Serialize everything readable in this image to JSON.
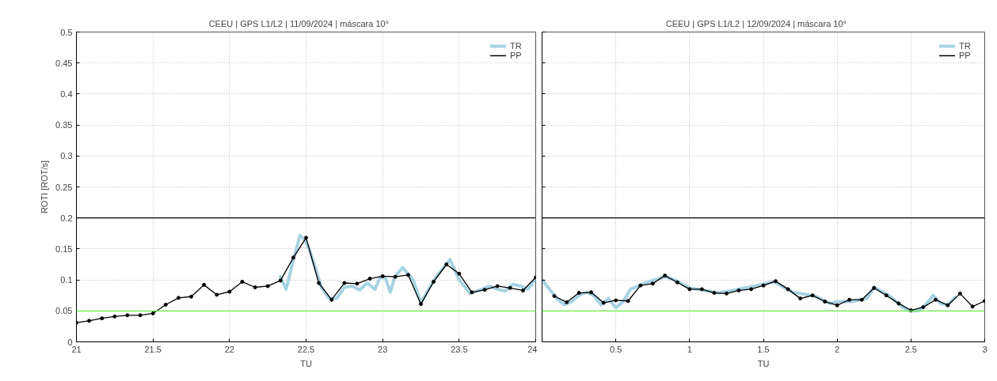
{
  "chart_data": [
    {
      "type": "line",
      "title": "CEEU  |  GPS L1/L2  |  11/09/2024  |  máscara 10°",
      "xlabel": "TU",
      "ylabel": "ROTI [ROT/s]",
      "xlim": [
        21,
        24
      ],
      "xticks": [
        21,
        21.5,
        22,
        22.5,
        23,
        23.5,
        24
      ],
      "ylim": [
        0,
        0.5
      ],
      "yticks": [
        0,
        0.05,
        0.1,
        0.15,
        0.2,
        0.25,
        0.3,
        0.35,
        0.4,
        0.45,
        0.5
      ],
      "grid": true,
      "legend": "top right",
      "ref_lines": [
        {
          "axis": "y",
          "value": 0.2,
          "color": "#000000"
        },
        {
          "axis": "y",
          "value": 0.05,
          "color": "#66ee44"
        }
      ],
      "series": [
        {
          "name": "TR",
          "color": "#a6d3e3",
          "marker": "none",
          "x": [
            22.33,
            22.37,
            22.42,
            22.46,
            22.49,
            22.52,
            22.56,
            22.6,
            22.65,
            22.7,
            22.75,
            22.8,
            22.85,
            22.9,
            22.95,
            22.98,
            23.0,
            23.02,
            23.05,
            23.08,
            23.13,
            23.2,
            23.25,
            23.3,
            23.35,
            23.44,
            23.5,
            23.57,
            23.65,
            23.7,
            23.75,
            23.8,
            23.85,
            23.9,
            23.95,
            24.0
          ],
          "values": [
            0.105,
            0.085,
            0.135,
            0.172,
            0.165,
            0.15,
            0.12,
            0.088,
            0.07,
            0.07,
            0.088,
            0.09,
            0.084,
            0.095,
            0.085,
            0.102,
            0.106,
            0.102,
            0.08,
            0.105,
            0.12,
            0.1,
            0.062,
            0.085,
            0.105,
            0.133,
            0.1,
            0.078,
            0.085,
            0.09,
            0.085,
            0.082,
            0.093,
            0.09,
            0.085,
            0.102
          ]
        },
        {
          "name": "PP",
          "color": "#000000",
          "marker": "circle",
          "x": [
            21.0,
            21.083,
            21.167,
            21.25,
            21.333,
            21.417,
            21.5,
            21.583,
            21.667,
            21.75,
            21.833,
            21.917,
            22.0,
            22.083,
            22.167,
            22.25,
            22.333,
            22.417,
            22.5,
            22.583,
            22.667,
            22.75,
            22.833,
            22.917,
            23.0,
            23.083,
            23.167,
            23.25,
            23.333,
            23.417,
            23.5,
            23.583,
            23.667,
            23.75,
            23.833,
            23.917,
            24.0
          ],
          "values": [
            0.031,
            0.034,
            0.038,
            0.041,
            0.043,
            0.043,
            0.046,
            0.06,
            0.071,
            0.073,
            0.092,
            0.076,
            0.081,
            0.097,
            0.088,
            0.09,
            0.099,
            0.136,
            0.168,
            0.095,
            0.068,
            0.095,
            0.094,
            0.102,
            0.106,
            0.105,
            0.108,
            0.061,
            0.097,
            0.125,
            0.11,
            0.08,
            0.084,
            0.09,
            0.087,
            0.083,
            0.104
          ]
        }
      ]
    },
    {
      "type": "line",
      "title": "CEEU  |  GPS L1/L2  |  12/09/2024  |  máscara 10°",
      "xlabel": "TU",
      "xlim": [
        0,
        3
      ],
      "xticks": [
        0.5,
        1,
        1.5,
        2,
        2.5,
        3
      ],
      "ylim": [
        0,
        0.5
      ],
      "yticks": [
        0,
        0.05,
        0.1,
        0.15,
        0.2,
        0.25,
        0.3,
        0.35,
        0.4,
        0.45,
        0.5
      ],
      "grid": true,
      "legend": "top right",
      "tick_labels": "x",
      "ref_lines": [
        {
          "axis": "y",
          "value": 0.2,
          "color": "#000000"
        },
        {
          "axis": "y",
          "value": 0.05,
          "color": "#66ee44"
        }
      ],
      "series": [
        {
          "name": "TR",
          "color": "#a6d3e3",
          "marker": "none",
          "x": [
            0,
            0.05,
            0.1,
            0.15,
            0.2,
            0.25,
            0.3,
            0.35,
            0.4,
            0.45,
            0.5,
            0.55,
            0.6,
            0.7,
            0.83,
            0.9,
            1.0,
            1.2,
            1.4,
            1.57,
            1.7,
            1.85,
            1.9,
            1.95,
            2.0,
            2.1,
            2.2,
            2.25,
            2.35,
            2.45,
            2.5,
            2.55,
            2.6,
            2.65,
            2.7,
            2.75,
            2.8
          ],
          "values": [
            0.1,
            0.085,
            0.07,
            0.06,
            0.065,
            0.075,
            0.08,
            0.075,
            0.06,
            0.07,
            0.055,
            0.065,
            0.085,
            0.095,
            0.105,
            0.1,
            0.087,
            0.079,
            0.088,
            0.097,
            0.08,
            0.074,
            0.068,
            0.062,
            0.065,
            0.065,
            0.07,
            0.088,
            0.075,
            0.055,
            0.05,
            0.05,
            0.06,
            0.075,
            0.062,
            0.06,
            0.072
          ]
        },
        {
          "name": "PP",
          "color": "#000000",
          "marker": "circle",
          "x": [
            0.083,
            0.167,
            0.25,
            0.333,
            0.417,
            0.5,
            0.583,
            0.667,
            0.75,
            0.833,
            0.917,
            1.0,
            1.083,
            1.167,
            1.25,
            1.333,
            1.417,
            1.5,
            1.583,
            1.667,
            1.75,
            1.833,
            1.917,
            2.0,
            2.083,
            2.167,
            2.25,
            2.333,
            2.417,
            2.5,
            2.583,
            2.667,
            2.75,
            2.833,
            2.917,
            3.0
          ],
          "values": [
            0.074,
            0.064,
            0.079,
            0.08,
            0.063,
            0.067,
            0.066,
            0.091,
            0.094,
            0.107,
            0.096,
            0.085,
            0.085,
            0.079,
            0.078,
            0.083,
            0.085,
            0.091,
            0.098,
            0.085,
            0.07,
            0.075,
            0.065,
            0.059,
            0.068,
            0.068,
            0.087,
            0.075,
            0.062,
            0.051,
            0.056,
            0.068,
            0.059,
            0.078,
            0.057,
            0.066
          ]
        }
      ]
    }
  ]
}
